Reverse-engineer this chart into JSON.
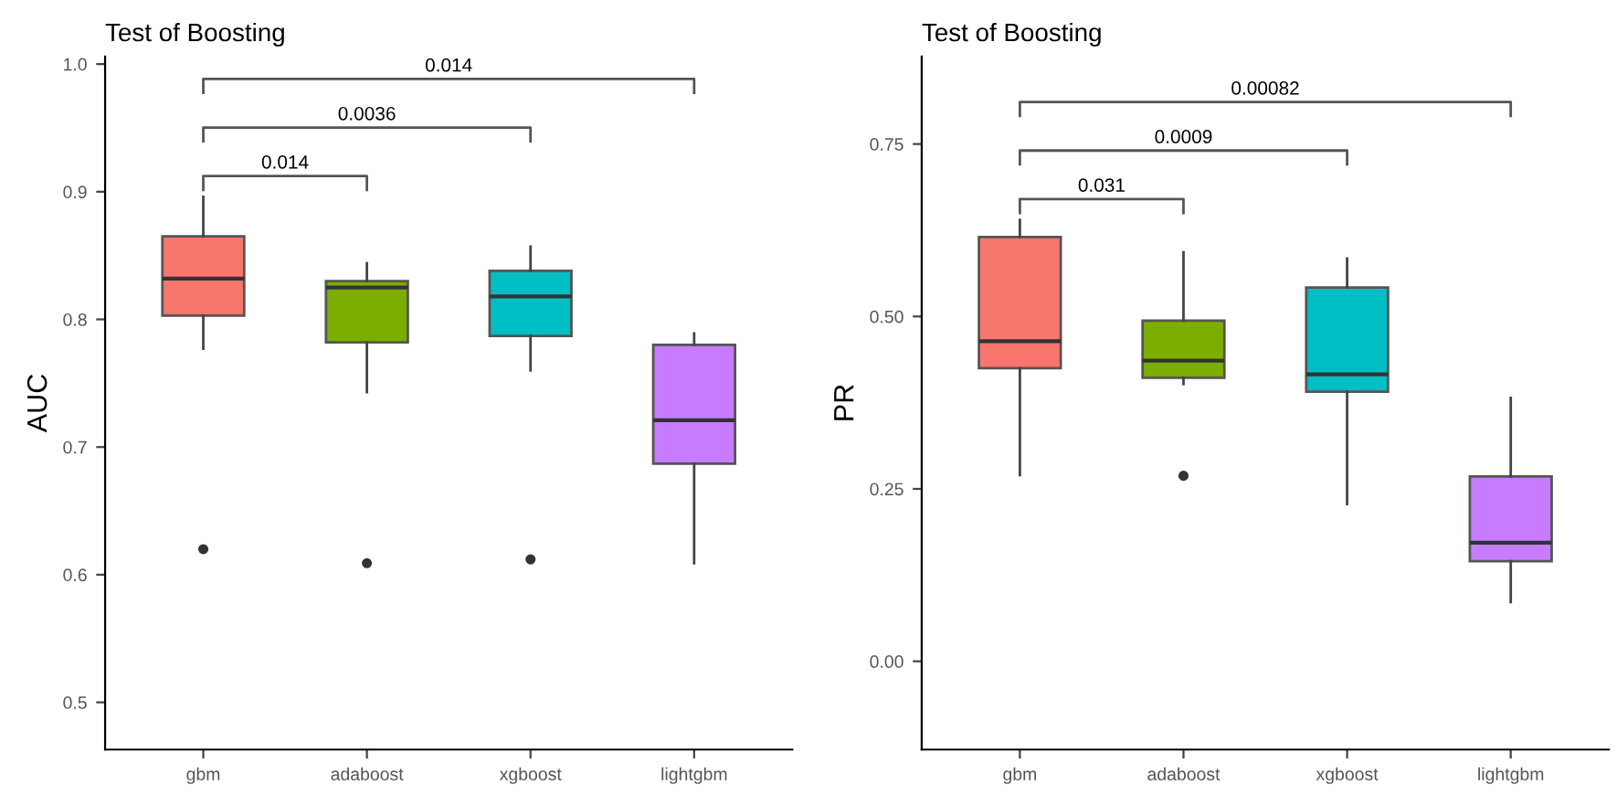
{
  "chart_data": [
    {
      "type": "box",
      "title": "Test of Boosting",
      "ylabel": "AUC",
      "categories": [
        "gbm",
        "adaboost",
        "xgboost",
        "lightgbm"
      ],
      "colors": [
        "#f8766d",
        "#7cae00",
        "#00bfc4",
        "#c77cff"
      ],
      "boxes": [
        {
          "low": 0.777,
          "q1": 0.803,
          "median": 0.832,
          "q3": 0.865,
          "high": 0.896,
          "outliers": [
            0.62
          ]
        },
        {
          "low": 0.743,
          "q1": 0.782,
          "median": 0.825,
          "q3": 0.83,
          "high": 0.844,
          "outliers": [
            0.609
          ]
        },
        {
          "low": 0.76,
          "q1": 0.787,
          "median": 0.818,
          "q3": 0.838,
          "high": 0.857,
          "outliers": [
            0.612
          ]
        },
        {
          "low": 0.609,
          "q1": 0.687,
          "median": 0.721,
          "q3": 0.78,
          "high": 0.789
        }
      ],
      "ylim": [
        0.463,
        1.006
      ],
      "yticks": [
        0.5,
        0.6,
        0.7,
        0.8,
        0.9,
        {
          "value": 1.0,
          "label": "1.0"
        }
      ],
      "grid": false,
      "annotations": [
        "0.014",
        "0.0036",
        "0.014"
      ]
    },
    {
      "type": "box",
      "title": "Test of Boosting",
      "ylabel": "PR",
      "categories": [
        "gbm",
        "adaboost",
        "xgboost",
        "lightgbm"
      ],
      "colors": [
        "#f8766d",
        "#7cae00",
        "#00bfc4",
        "#c77cff"
      ],
      "boxes": [
        {
          "low": 0.27,
          "q1": 0.425,
          "median": 0.464,
          "q3": 0.615,
          "high": 0.64
        },
        {
          "low": 0.402,
          "q1": 0.411,
          "median": 0.436,
          "q3": 0.494,
          "high": 0.593,
          "outliers": [
            0.269
          ]
        },
        {
          "low": 0.228,
          "q1": 0.391,
          "median": 0.416,
          "q3": 0.542,
          "high": 0.584
        },
        {
          "low": 0.086,
          "q1": 0.145,
          "median": 0.172,
          "q3": 0.268,
          "high": 0.382
        }
      ],
      "ylim": [
        -0.128,
        0.877
      ],
      "yticks": [
        {
          "value": 0.0,
          "label": "0.00"
        },
        0.25,
        {
          "value": 0.5,
          "label": "0.50"
        },
        0.75
      ],
      "grid": false,
      "annotations": [
        "0.031",
        "0.0009",
        "0.00082"
      ]
    }
  ]
}
